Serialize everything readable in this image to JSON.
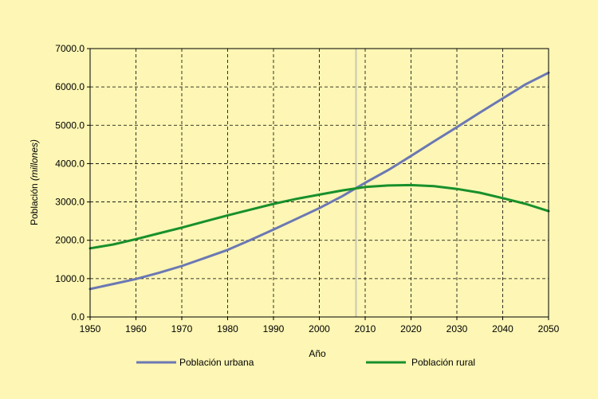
{
  "chart_data": {
    "type": "line",
    "xlabel": "Año",
    "ylabel": {
      "prefix": "Población ",
      "italic": "(millones)"
    },
    "xlim": [
      1950,
      2050
    ],
    "ylim": [
      0,
      7000
    ],
    "x_ticks": [
      "1950",
      "1960",
      "1970",
      "1980",
      "1990",
      "2000",
      "2010",
      "2020",
      "2030",
      "2040",
      "2050"
    ],
    "y_ticks": [
      "0.0",
      "1000.0",
      "2000.0",
      "3000.0",
      "4000.0",
      "5000.0",
      "6000.0",
      "7000.0"
    ],
    "grid": "dashed",
    "reference_line_x": 2008,
    "legend_position": "bottom",
    "series": [
      {
        "name": "Población urbana",
        "color": "#6b78b4",
        "x": [
          1950,
          1955,
          1960,
          1965,
          1970,
          1975,
          1980,
          1985,
          1990,
          1995,
          2000,
          2005,
          2010,
          2015,
          2020,
          2025,
          2030,
          2035,
          2040,
          2045,
          2050
        ],
        "values": [
          730,
          860,
          990,
          1150,
          1330,
          1540,
          1750,
          2010,
          2280,
          2560,
          2840,
          3150,
          3500,
          3830,
          4200,
          4580,
          4950,
          5330,
          5700,
          6070,
          6370
        ]
      },
      {
        "name": "Población rural",
        "color": "#18902c",
        "x": [
          1950,
          1955,
          1960,
          1965,
          1970,
          1975,
          1980,
          1985,
          1990,
          1995,
          2000,
          2005,
          2010,
          2015,
          2020,
          2025,
          2030,
          2035,
          2040,
          2045,
          2050
        ],
        "values": [
          1790,
          1890,
          2030,
          2180,
          2330,
          2490,
          2650,
          2800,
          2950,
          3080,
          3190,
          3300,
          3390,
          3430,
          3440,
          3410,
          3340,
          3240,
          3100,
          2950,
          2760
        ]
      }
    ]
  }
}
